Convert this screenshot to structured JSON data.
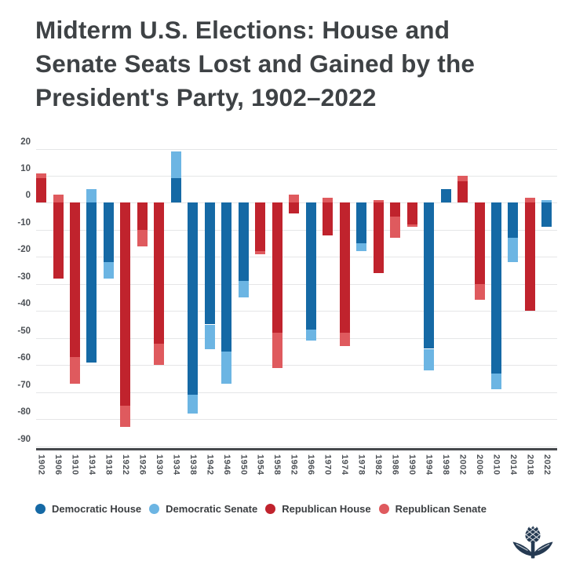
{
  "title": {
    "text": "Midterm U.S. Elections: House and Senate Seats Lost and Gained by the President's Party, 1902–2022",
    "lines": [
      "Midterm U.S. Elections: House and",
      "Senate Seats Lost and Gained by the",
      "President's Party, 1902–2022"
    ]
  },
  "chart_data": {
    "type": "bar",
    "stacked": true,
    "grid": true,
    "legend_position": "bottom",
    "ylabel": "",
    "xlabel": "",
    "ylim": [
      -90,
      20
    ],
    "yticks": [
      20,
      10,
      0,
      -10,
      -20,
      -30,
      -40,
      -50,
      -60,
      -70,
      -80,
      -90
    ],
    "categories": [
      "1902",
      "1906",
      "1910",
      "1914",
      "1918",
      "1922",
      "1926",
      "1930",
      "1934",
      "1938",
      "1942",
      "1946",
      "1950",
      "1954",
      "1958",
      "1962",
      "1966",
      "1970",
      "1974",
      "1978",
      "1982",
      "1986",
      "1990",
      "1994",
      "1998",
      "2002",
      "2006",
      "2010",
      "2014",
      "2018",
      "2022"
    ],
    "bars": [
      {
        "year": "1902",
        "party": "R",
        "house": 9,
        "senate": 2
      },
      {
        "year": "1906",
        "party": "R",
        "house": -28,
        "senate": 3
      },
      {
        "year": "1910",
        "party": "R",
        "house": -57,
        "senate": -10
      },
      {
        "year": "1914",
        "party": "D",
        "house": -59,
        "senate": 5
      },
      {
        "year": "1918",
        "party": "D",
        "house": -22,
        "senate": -6
      },
      {
        "year": "1922",
        "party": "R",
        "house": -75,
        "senate": -8
      },
      {
        "year": "1926",
        "party": "R",
        "house": -10,
        "senate": -6
      },
      {
        "year": "1930",
        "party": "R",
        "house": -52,
        "senate": -8
      },
      {
        "year": "1934",
        "party": "D",
        "house": 9,
        "senate": 10
      },
      {
        "year": "1938",
        "party": "D",
        "house": -71,
        "senate": -7
      },
      {
        "year": "1942",
        "party": "D",
        "house": -45,
        "senate": -9
      },
      {
        "year": "1946",
        "party": "D",
        "house": -55,
        "senate": -12
      },
      {
        "year": "1950",
        "party": "D",
        "house": -29,
        "senate": -6
      },
      {
        "year": "1954",
        "party": "R",
        "house": -18,
        "senate": -1
      },
      {
        "year": "1958",
        "party": "R",
        "house": -48,
        "senate": -13
      },
      {
        "year": "1962",
        "party": "R",
        "house": -4,
        "senate": 3
      },
      {
        "year": "1966",
        "party": "D",
        "house": -47,
        "senate": -4
      },
      {
        "year": "1970",
        "party": "R",
        "house": -12,
        "senate": 2
      },
      {
        "year": "1974",
        "party": "R",
        "house": -48,
        "senate": -5
      },
      {
        "year": "1978",
        "party": "D",
        "house": -15,
        "senate": -3
      },
      {
        "year": "1982",
        "party": "R",
        "house": -26,
        "senate": 1
      },
      {
        "year": "1986",
        "party": "R",
        "house": -5,
        "senate": -8
      },
      {
        "year": "1990",
        "party": "R",
        "house": -8,
        "senate": -1
      },
      {
        "year": "1994",
        "party": "D",
        "house": -54,
        "senate": -8
      },
      {
        "year": "1998",
        "party": "D",
        "house": 5,
        "senate": 0
      },
      {
        "year": "2002",
        "party": "R",
        "house": 8,
        "senate": 2
      },
      {
        "year": "2006",
        "party": "R",
        "house": -30,
        "senate": -6
      },
      {
        "year": "2010",
        "party": "D",
        "house": -63,
        "senate": -6
      },
      {
        "year": "2014",
        "party": "D",
        "house": -13,
        "senate": -9
      },
      {
        "year": "2018",
        "party": "R",
        "house": -40,
        "senate": 2
      },
      {
        "year": "2022",
        "party": "D",
        "house": -9,
        "senate": 1
      }
    ],
    "colors": {
      "democratic_house": "#1569a5",
      "democratic_senate": "#6cb5e3",
      "republican_house": "#c0232d",
      "republican_senate": "#df5a5e"
    },
    "legend": [
      {
        "label": "Democratic House",
        "color": "#1569a5"
      },
      {
        "label": "Democratic Senate",
        "color": "#6cb5e3"
      },
      {
        "label": "Republican House",
        "color": "#c0232d"
      },
      {
        "label": "Republican Senate",
        "color": "#df5a5e"
      }
    ]
  },
  "branding": {
    "logo_name": "britannica-thistle-logo",
    "logo_color": "#253a52"
  }
}
